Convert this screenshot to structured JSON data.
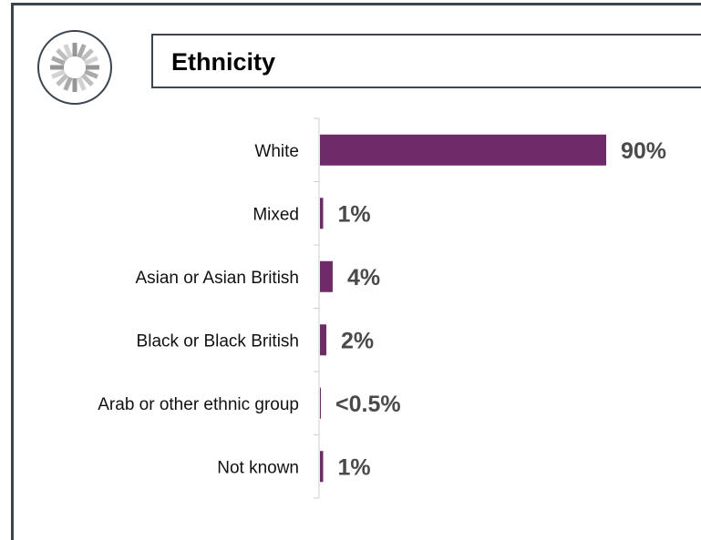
{
  "title": "Ethnicity",
  "icon": "dashed-circle-icon",
  "colors": {
    "bar": "#6f2a6a",
    "border": "#3b4550",
    "value_text": "#4a4a4a"
  },
  "chart_data": {
    "type": "bar",
    "orientation": "horizontal",
    "title": "Ethnicity",
    "categories": [
      "White",
      "Mixed",
      "Asian or Asian British",
      "Black or Black British",
      "Arab or other ethnic group",
      "Not known"
    ],
    "values": [
      90,
      1,
      4,
      2,
      0.3,
      1
    ],
    "value_labels": [
      "90%",
      "1%",
      "4%",
      "2%",
      "<0.5%",
      "1%"
    ],
    "xlim": [
      0,
      90
    ],
    "grid": false,
    "legend": "none"
  }
}
